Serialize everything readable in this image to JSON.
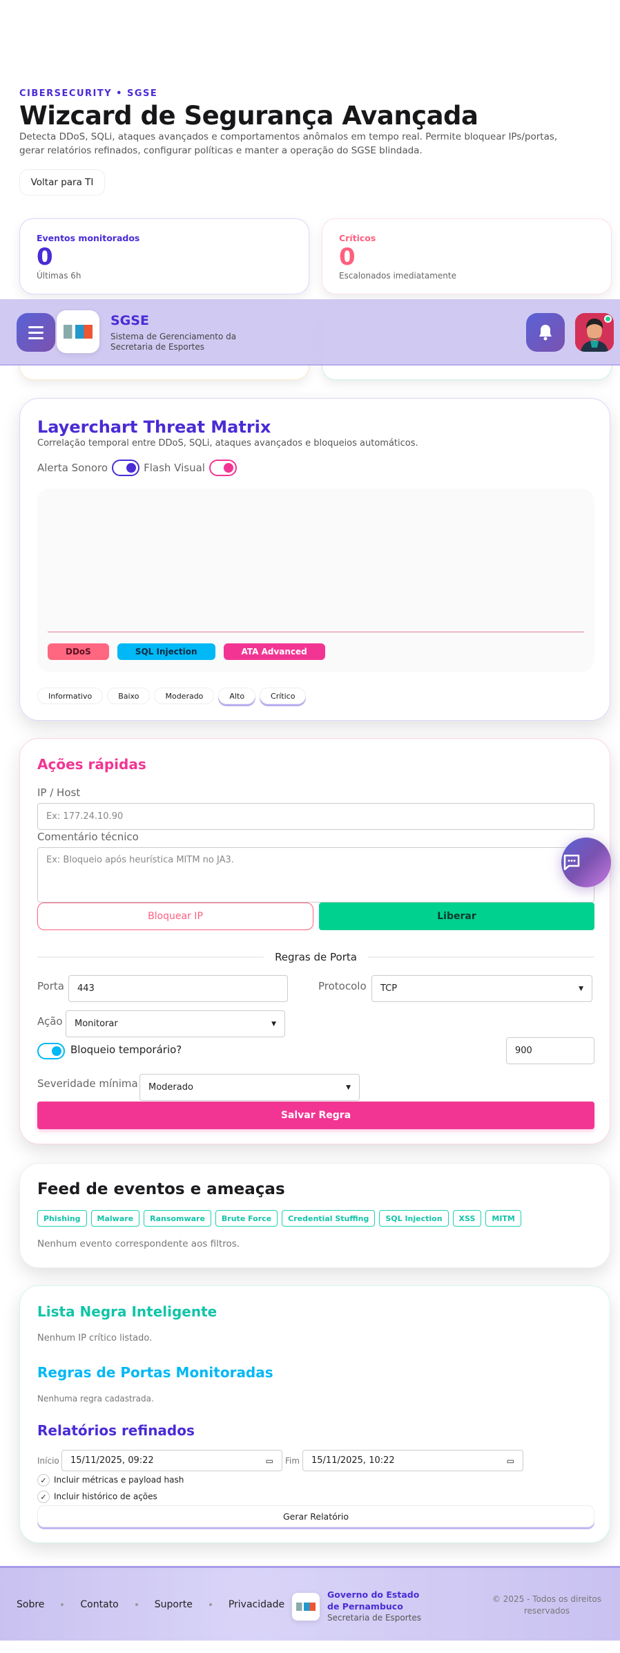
{
  "hero": {
    "eyebrow": "CIBERSECURITY • SGSE",
    "title": "Wizcard de Segurança Avançada",
    "description": "Detecta DDoS, SQLi, ataques avançados e comportamentos anômalos em tempo real. Permite bloquear IPs/portas, gerar relatórios refinados, configurar políticas e manter a operação do SGSE blindada.",
    "back_label": "Voltar para TI"
  },
  "stats": [
    {
      "label": "Eventos monitorados",
      "value": "0",
      "sub": "Últimas 6h",
      "color": "#4a2bd6"
    },
    {
      "label": "Críticos",
      "value": "0",
      "sub": "Escalonados imediatamente",
      "color": "#ff5f7e"
    }
  ],
  "header": {
    "title": "SGSE",
    "subtitle": "Sistema de Gerenciamento da Secretaria de Esportes",
    "menu_icon": "hamburger-icon",
    "bell_icon": "bell-icon",
    "avatar_status": "online"
  },
  "threat": {
    "title": "Layerchart Threat Matrix",
    "subtitle": "Correlação temporal entre DDoS, SQLi, ataques avançados e bloqueios automáticos.",
    "toggle_sound": "Alerta Sonoro",
    "toggle_flash": "Flash Visual",
    "legend": [
      {
        "label": "DDoS",
        "color": "#ff6680"
      },
      {
        "label": "SQL Injection",
        "color": "#00b8f5"
      },
      {
        "label": "ATA Advanced",
        "color": "#f23593"
      }
    ],
    "severities": [
      "Informativo",
      "Baixo",
      "Moderado",
      "Alto",
      "Crítico"
    ]
  },
  "actions": {
    "title": "Ações rápidas",
    "ip_label": "IP / Host",
    "ip_placeholder": "Ex: 177.24.10.90",
    "comment_label": "Comentário técnico",
    "comment_placeholder": "Ex: Bloqueio após heurística MITM no JA3.",
    "block_label": "Bloquear IP",
    "release_label": "Liberar",
    "port_rules_title": "Regras de Porta",
    "port_label": "Porta",
    "port_value": "443",
    "protocol_label": "Protocolo",
    "protocol_value": "TCP",
    "action_label": "Ação",
    "action_value": "Monitorar",
    "temp_block_label": "Bloqueio temporário?",
    "temp_block_value": "900",
    "severity_label": "Severidade mínima",
    "severity_value": "Moderado",
    "save_label": "Salvar Regra"
  },
  "feed": {
    "title": "Feed de eventos e ameaças",
    "tags": [
      "Phishing",
      "Malware",
      "Ransomware",
      "Brute Force",
      "Credential Stuffing",
      "SQL Injection",
      "XSS",
      "MITM"
    ],
    "empty": "Nenhum evento correspondente aos filtros."
  },
  "blacklist": {
    "title": "Lista Negra Inteligente",
    "empty": "Nenhum IP crítico listado."
  },
  "port_rules": {
    "title": "Regras de Portas Monitoradas",
    "empty": "Nenhuma regra cadastrada."
  },
  "reports": {
    "title": "Relatórios refinados",
    "start_label": "Início",
    "start_value": "15/11/2025, 09:22",
    "end_label": "Fim",
    "end_value": "15/11/2025, 10:22",
    "opt_metrics": "Incluir métricas e payload hash",
    "opt_history": "Incluir histórico de ações",
    "generate_label": "Gerar Relatório"
  },
  "footer": {
    "links": [
      "Sobre",
      "Contato",
      "Suporte",
      "Privacidade"
    ],
    "org": "Governo do Estado de Pernambuco",
    "dept": "Secretaria de Esportes",
    "copyright": "© 2025 - Todos os direitos reservados"
  }
}
